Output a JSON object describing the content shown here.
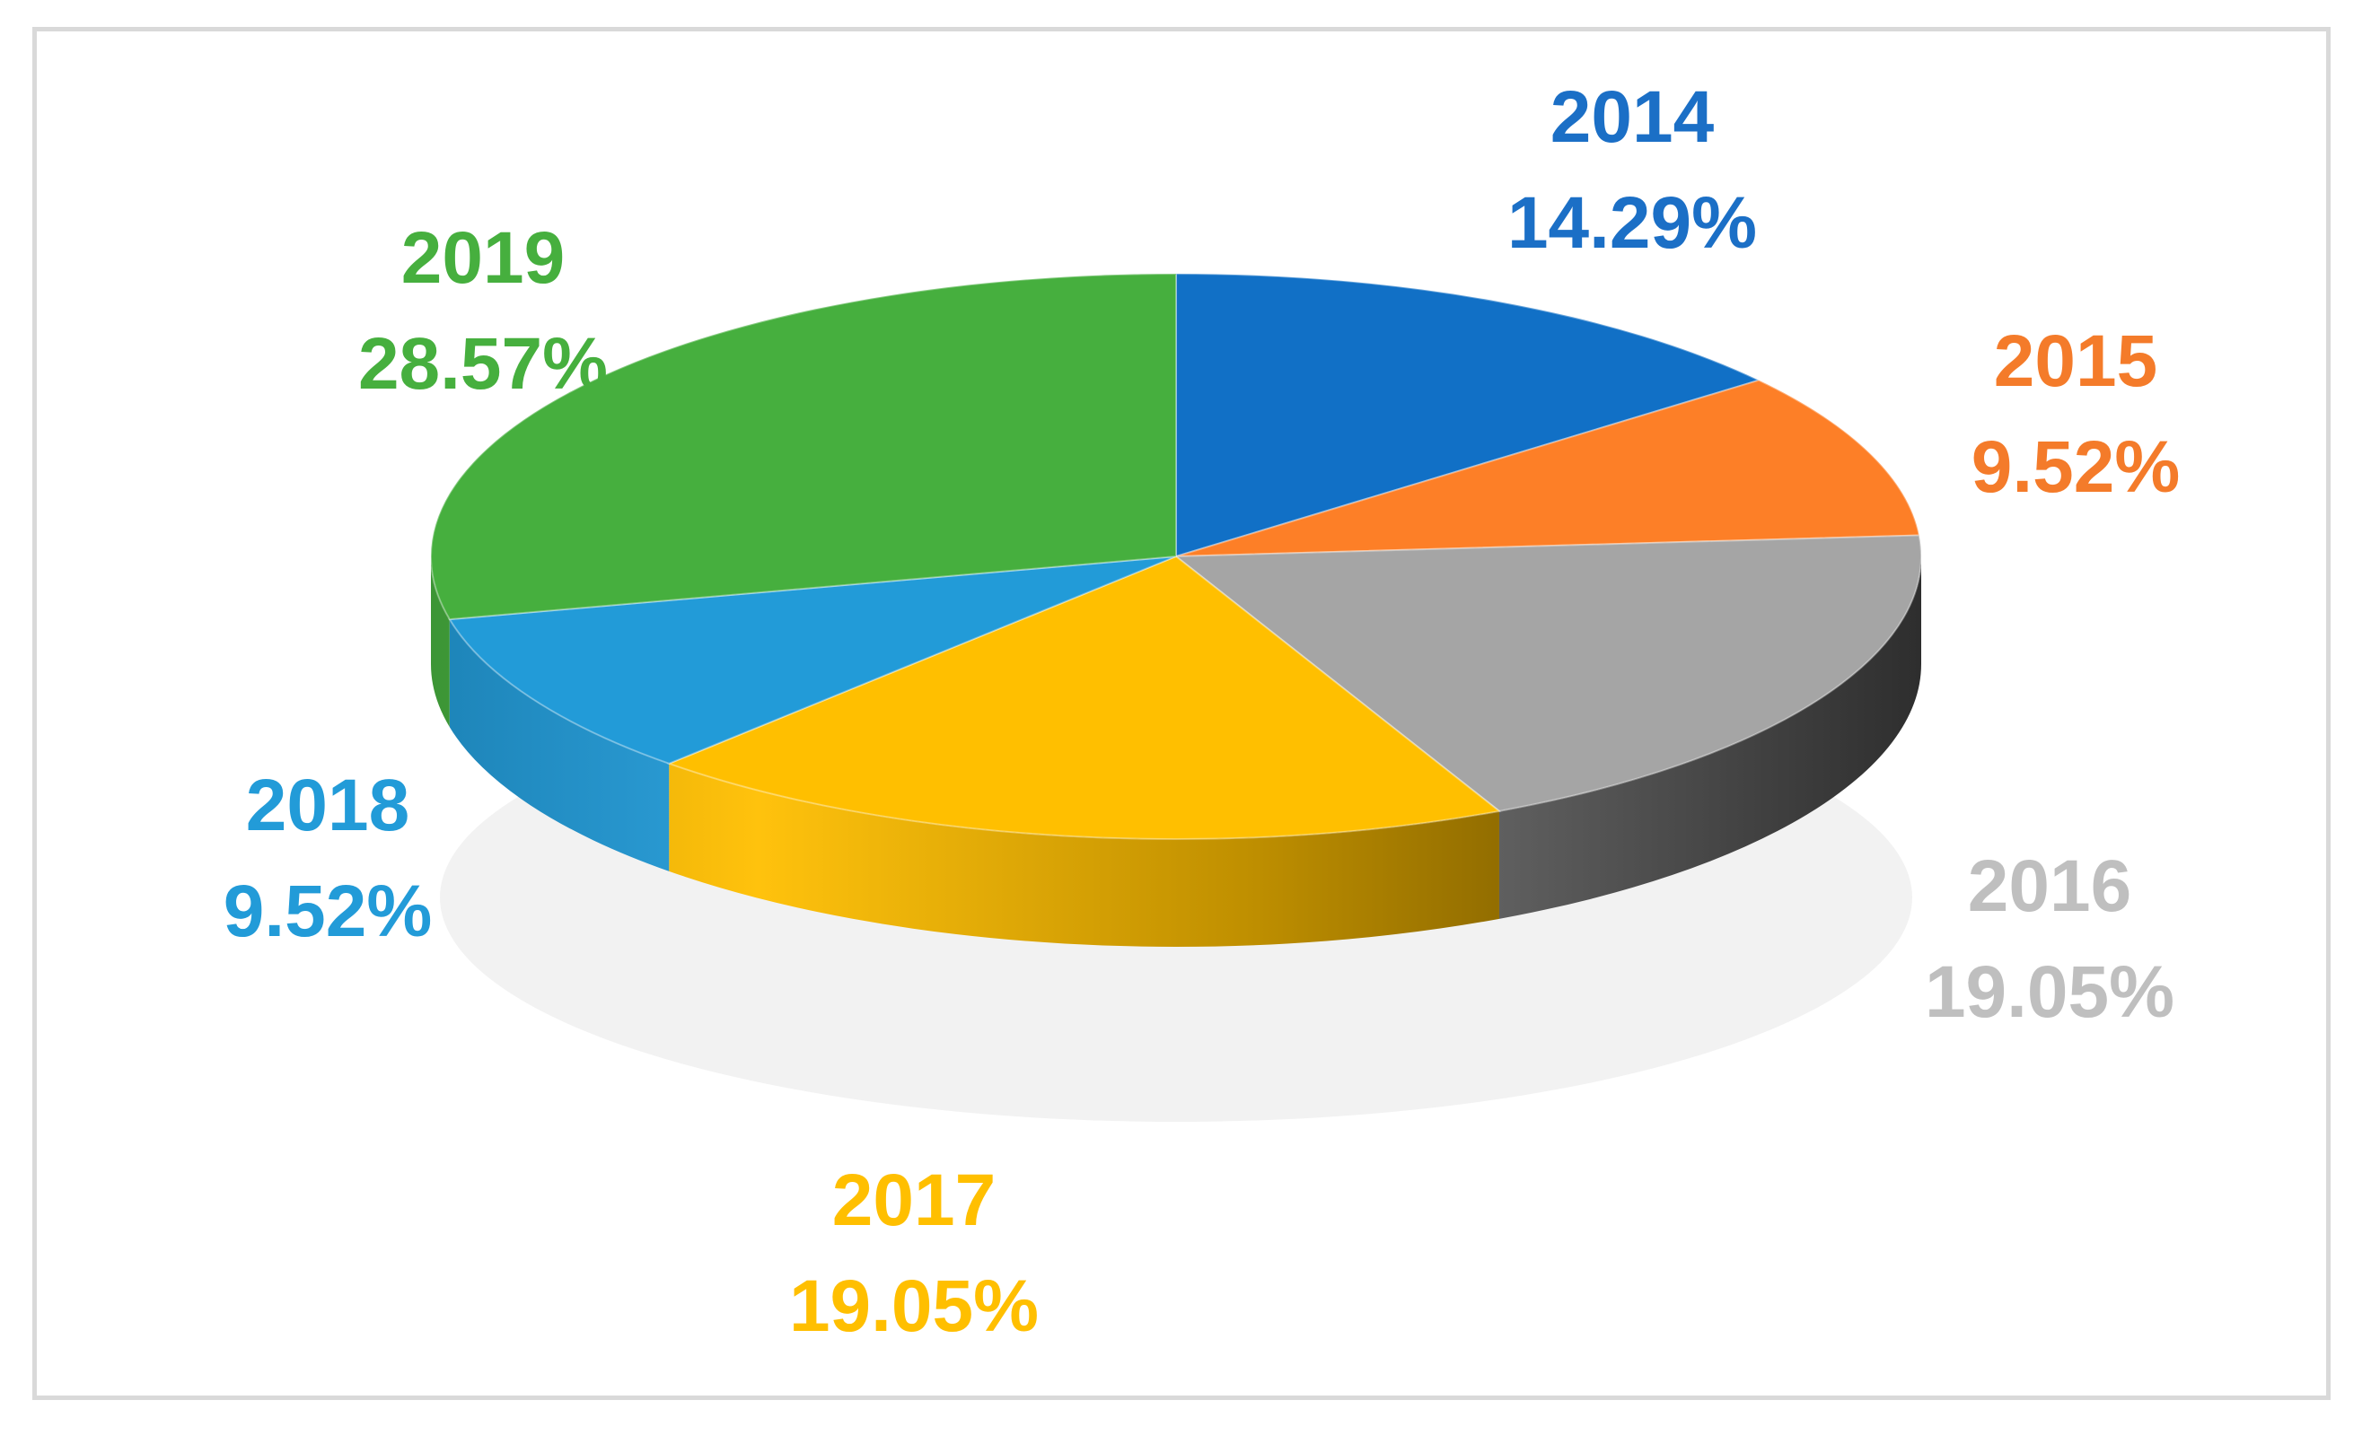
{
  "chart_data": {
    "type": "pie",
    "title": "",
    "style": "3d",
    "legend": "none",
    "slices": [
      {
        "label": "2014",
        "value": 14.29,
        "value_label": "14.29%",
        "color": "#1170C6"
      },
      {
        "label": "2015",
        "value": 9.52,
        "value_label": "9.52%",
        "color": "#FD7F27"
      },
      {
        "label": "2016",
        "value": 19.05,
        "value_label": "19.05%",
        "color": "#A5A5A5"
      },
      {
        "label": "2017",
        "value": 19.05,
        "value_label": "19.05%",
        "color": "#FFBF00"
      },
      {
        "label": "2018",
        "value": 9.52,
        "value_label": "9.52%",
        "color": "#229BD8"
      },
      {
        "label": "2019",
        "value": 28.57,
        "value_label": "28.57%",
        "color": "#46AF3E"
      }
    ],
    "label_colors": {
      "2014": "#1B6FC6",
      "2015": "#F47B2A",
      "2016": "#BFBFBF",
      "2017": "#FFBF00",
      "2018": "#229BD8",
      "2019": "#46AF3E"
    }
  }
}
